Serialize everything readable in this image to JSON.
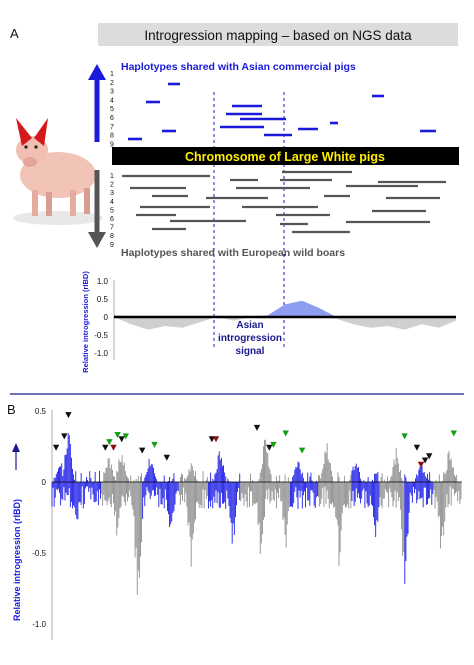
{
  "panel_a": {
    "letter": "A",
    "title": "Introgression mapping – based on NGS data",
    "asian_label": "Haplotypes shared with Asian commercial pigs",
    "chromosome_label": "Chromosome of Large White pigs",
    "european_label": "Haplotypes shared with European wild boars",
    "signal_label_lines": [
      "Asian",
      "introgression",
      "signal"
    ],
    "colors": {
      "asian": "#1a1adb",
      "european": "#555555",
      "chromosome_bar": "#000000",
      "chromosome_text": "#ffee00",
      "title_bg": "#dcdcdc",
      "signal_positive": "#8e9df0",
      "signal_negative": "#cfcfcf"
    },
    "icon": "pig-icon"
  },
  "panel_b": {
    "letter": "B",
    "colors": {
      "bars_blue": "#1e1ee6",
      "bars_gray": "#8f8f8f",
      "tri_black": "#111111",
      "tri_green": "#12a012",
      "tri_red": "#8a1010"
    }
  },
  "chart_data": [
    {
      "type": "area",
      "panel": "A (bottom)",
      "ylabel": "Relative introgression (rIBD)",
      "yticks": [
        "1.0",
        "0.5",
        "0",
        "-0.5",
        "-1.0"
      ],
      "ylim": [
        -1.0,
        1.0
      ],
      "x": [
        0,
        5,
        10,
        15,
        20,
        25,
        30,
        35,
        40,
        45,
        50,
        55,
        60,
        65,
        70,
        75,
        80,
        85,
        90,
        95,
        100
      ],
      "values": [
        0.05,
        -0.2,
        -0.35,
        -0.25,
        -0.3,
        -0.15,
        0.0,
        -0.1,
        0.0,
        0.05,
        0.35,
        0.45,
        0.25,
        -0.05,
        -0.2,
        -0.3,
        -0.25,
        -0.35,
        -0.2,
        -0.3,
        -0.1
      ]
    },
    {
      "type": "bar",
      "panel": "B",
      "ylabel": "Relative introgression (rIBD)",
      "yticks": [
        "0.5",
        "0",
        "-0.5",
        "-1.0"
      ],
      "ylim": [
        -1.0,
        0.5
      ],
      "x_range": [
        0,
        100
      ],
      "alternating_chromosome_colors": [
        "blue",
        "gray"
      ],
      "chromosome_boundaries": [
        0,
        12,
        22,
        31,
        38,
        46,
        58,
        65,
        73,
        80,
        86,
        93,
        100
      ],
      "peaks": [
        {
          "x": 2,
          "y": 0.2
        },
        {
          "x": 4,
          "y": 0.42
        },
        {
          "x": 14,
          "y": 0.22
        },
        {
          "x": 17,
          "y": 0.3
        },
        {
          "x": 24,
          "y": 0.23
        },
        {
          "x": 34,
          "y": 0.15
        },
        {
          "x": 41,
          "y": 0.28
        },
        {
          "x": 52,
          "y": 0.36
        },
        {
          "x": 60,
          "y": 0.2
        },
        {
          "x": 67,
          "y": 0.32
        },
        {
          "x": 74,
          "y": 0.2
        },
        {
          "x": 84,
          "y": 0.26
        },
        {
          "x": 90,
          "y": 0.16
        },
        {
          "x": 97,
          "y": 0.28
        }
      ],
      "troughs": [
        {
          "x": 6,
          "y": -0.35
        },
        {
          "x": 16,
          "y": -0.45
        },
        {
          "x": 21,
          "y": -1.02
        },
        {
          "x": 29,
          "y": -0.5
        },
        {
          "x": 34,
          "y": -0.72
        },
        {
          "x": 44,
          "y": -0.55
        },
        {
          "x": 51,
          "y": -0.62
        },
        {
          "x": 57,
          "y": -0.52
        },
        {
          "x": 70,
          "y": -0.6
        },
        {
          "x": 79,
          "y": -0.45
        },
        {
          "x": 86,
          "y": -0.78
        },
        {
          "x": 95,
          "y": -0.58
        }
      ],
      "markers": [
        {
          "x": 1,
          "y": 0.22,
          "color": "black"
        },
        {
          "x": 3,
          "y": 0.3,
          "color": "black"
        },
        {
          "x": 4,
          "y": 0.45,
          "color": "black"
        },
        {
          "x": 13,
          "y": 0.22,
          "color": "black"
        },
        {
          "x": 14,
          "y": 0.26,
          "color": "green"
        },
        {
          "x": 15,
          "y": 0.22,
          "color": "red"
        },
        {
          "x": 16,
          "y": 0.31,
          "color": "green"
        },
        {
          "x": 17,
          "y": 0.28,
          "color": "black"
        },
        {
          "x": 18,
          "y": 0.3,
          "color": "green"
        },
        {
          "x": 22,
          "y": 0.2,
          "color": "black"
        },
        {
          "x": 25,
          "y": 0.24,
          "color": "green"
        },
        {
          "x": 28,
          "y": 0.15,
          "color": "black"
        },
        {
          "x": 39,
          "y": 0.28,
          "color": "black"
        },
        {
          "x": 40,
          "y": 0.28,
          "color": "red"
        },
        {
          "x": 50,
          "y": 0.36,
          "color": "black"
        },
        {
          "x": 53,
          "y": 0.22,
          "color": "black"
        },
        {
          "x": 54,
          "y": 0.24,
          "color": "green"
        },
        {
          "x": 57,
          "y": 0.32,
          "color": "green"
        },
        {
          "x": 61,
          "y": 0.2,
          "color": "green"
        },
        {
          "x": 86,
          "y": 0.3,
          "color": "green"
        },
        {
          "x": 89,
          "y": 0.22,
          "color": "black"
        },
        {
          "x": 90,
          "y": 0.1,
          "color": "red"
        },
        {
          "x": 91,
          "y": 0.13,
          "color": "black"
        },
        {
          "x": 92,
          "y": 0.16,
          "color": "black"
        },
        {
          "x": 98,
          "y": 0.32,
          "color": "green"
        }
      ]
    }
  ]
}
